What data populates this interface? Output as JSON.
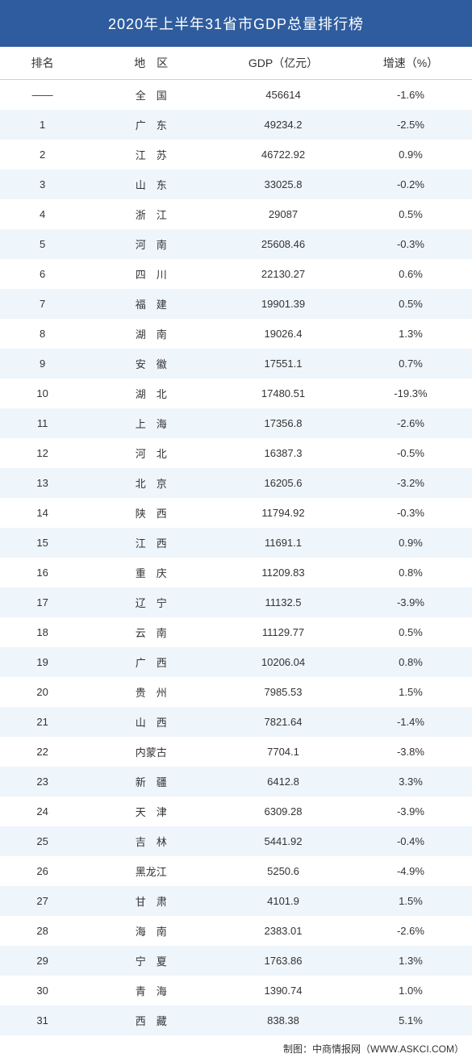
{
  "title": "2020年上半年31省市GDP总量排行榜",
  "columns": [
    "排名",
    "地　区",
    "GDP（亿元）",
    "增速（%）"
  ],
  "styling": {
    "header_bg": "#2e5c9e",
    "header_text_color": "#ffffff",
    "row_even_bg": "#eef5fb",
    "row_odd_bg": "#ffffff",
    "text_color": "#333333",
    "title_fontsize": 18,
    "cell_fontsize": 13,
    "header_fontsize": 14,
    "column_widths": [
      "18%",
      "28%",
      "28%",
      "26%"
    ]
  },
  "rows": [
    {
      "rank": "——",
      "region": "全　国",
      "gdp": "456614",
      "growth": "-1.6%"
    },
    {
      "rank": "1",
      "region": "广　东",
      "gdp": "49234.2",
      "growth": "-2.5%"
    },
    {
      "rank": "2",
      "region": "江　苏",
      "gdp": "46722.92",
      "growth": "0.9%"
    },
    {
      "rank": "3",
      "region": "山　东",
      "gdp": "33025.8",
      "growth": "-0.2%"
    },
    {
      "rank": "4",
      "region": "浙　江",
      "gdp": "29087",
      "growth": "0.5%"
    },
    {
      "rank": "5",
      "region": "河　南",
      "gdp": "25608.46",
      "growth": "-0.3%"
    },
    {
      "rank": "6",
      "region": "四　川",
      "gdp": "22130.27",
      "growth": "0.6%"
    },
    {
      "rank": "7",
      "region": "福　建",
      "gdp": "19901.39",
      "growth": "0.5%"
    },
    {
      "rank": "8",
      "region": "湖　南",
      "gdp": "19026.4",
      "growth": "1.3%"
    },
    {
      "rank": "9",
      "region": "安　徽",
      "gdp": "17551.1",
      "growth": "0.7%"
    },
    {
      "rank": "10",
      "region": "湖　北",
      "gdp": "17480.51",
      "growth": "-19.3%"
    },
    {
      "rank": "11",
      "region": "上　海",
      "gdp": "17356.8",
      "growth": "-2.6%"
    },
    {
      "rank": "12",
      "region": "河　北",
      "gdp": "16387.3",
      "growth": "-0.5%"
    },
    {
      "rank": "13",
      "region": "北　京",
      "gdp": "16205.6",
      "growth": "-3.2%"
    },
    {
      "rank": "14",
      "region": "陕　西",
      "gdp": "11794.92",
      "growth": "-0.3%"
    },
    {
      "rank": "15",
      "region": "江　西",
      "gdp": "11691.1",
      "growth": "0.9%"
    },
    {
      "rank": "16",
      "region": "重　庆",
      "gdp": "11209.83",
      "growth": "0.8%"
    },
    {
      "rank": "17",
      "region": "辽　宁",
      "gdp": "11132.5",
      "growth": "-3.9%"
    },
    {
      "rank": "18",
      "region": "云　南",
      "gdp": "11129.77",
      "growth": "0.5%"
    },
    {
      "rank": "19",
      "region": "广　西",
      "gdp": "10206.04",
      "growth": "0.8%"
    },
    {
      "rank": "20",
      "region": "贵　州",
      "gdp": "7985.53",
      "growth": "1.5%"
    },
    {
      "rank": "21",
      "region": "山　西",
      "gdp": "7821.64",
      "growth": "-1.4%"
    },
    {
      "rank": "22",
      "region": "内蒙古",
      "gdp": "7704.1",
      "growth": "-3.8%"
    },
    {
      "rank": "23",
      "region": "新　疆",
      "gdp": "6412.8",
      "growth": "3.3%"
    },
    {
      "rank": "24",
      "region": "天　津",
      "gdp": "6309.28",
      "growth": "-3.9%"
    },
    {
      "rank": "25",
      "region": "吉　林",
      "gdp": "5441.92",
      "growth": "-0.4%"
    },
    {
      "rank": "26",
      "region": "黑龙江",
      "gdp": "5250.6",
      "growth": "-4.9%"
    },
    {
      "rank": "27",
      "region": "甘　肃",
      "gdp": "4101.9",
      "growth": "1.5%"
    },
    {
      "rank": "28",
      "region": "海　南",
      "gdp": "2383.01",
      "growth": "-2.6%"
    },
    {
      "rank": "29",
      "region": "宁　夏",
      "gdp": "1763.86",
      "growth": "1.3%"
    },
    {
      "rank": "30",
      "region": "青　海",
      "gdp": "1390.74",
      "growth": "1.0%"
    },
    {
      "rank": "31",
      "region": "西　藏",
      "gdp": "838.38",
      "growth": "5.1%"
    }
  ],
  "footer": "制图：中商情报网（WWW.ASKCI.COM）"
}
